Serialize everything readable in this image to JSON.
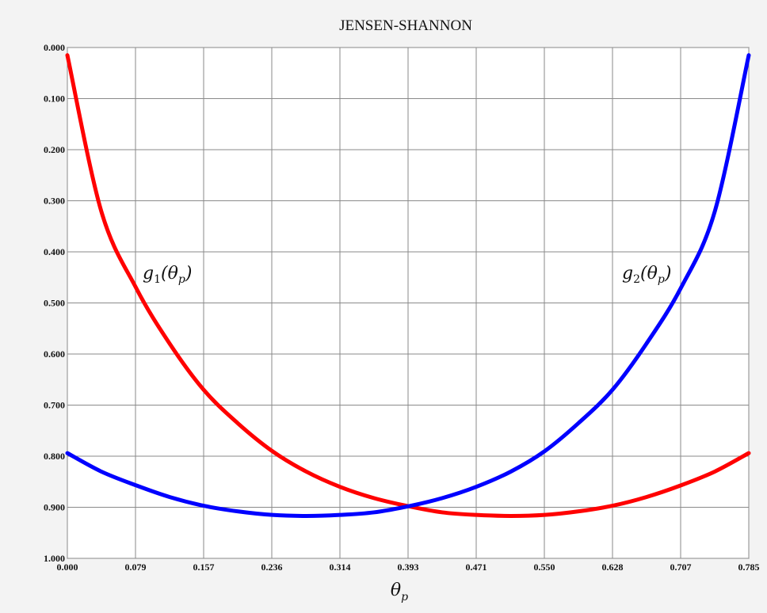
{
  "chart_data": {
    "type": "line",
    "title": "JENSEN-SHANNON",
    "xlabel": "θp",
    "ylabel": "",
    "xlim": [
      0,
      0.785
    ],
    "ylim": [
      0,
      1
    ],
    "y_axis_inverted": true,
    "grid": true,
    "x_ticks": [
      "0.000",
      "0.079",
      "0.157",
      "0.236",
      "0.314",
      "0.393",
      "0.471",
      "0.550",
      "0.628",
      "0.707",
      "0.785"
    ],
    "y_ticks": [
      "0.000",
      "0.100",
      "0.200",
      "0.300",
      "0.400",
      "0.500",
      "0.600",
      "0.700",
      "0.800",
      "0.900",
      "1.000"
    ],
    "series": [
      {
        "name": "g1(θp)",
        "color": "#ff0000",
        "x": [
          0.0,
          0.039,
          0.079,
          0.118,
          0.157,
          0.196,
          0.236,
          0.275,
          0.314,
          0.353,
          0.393,
          0.432,
          0.471,
          0.511,
          0.55,
          0.589,
          0.628,
          0.667,
          0.707,
          0.746,
          0.785
        ],
        "y": [
          0.015,
          0.32,
          0.47,
          0.58,
          0.67,
          0.735,
          0.79,
          0.83,
          0.86,
          0.882,
          0.898,
          0.91,
          0.915,
          0.917,
          0.915,
          0.908,
          0.897,
          0.88,
          0.857,
          0.83,
          0.794
        ]
      },
      {
        "name": "g2(θp)",
        "color": "#0000ff",
        "x": [
          0.0,
          0.039,
          0.079,
          0.118,
          0.157,
          0.196,
          0.236,
          0.275,
          0.314,
          0.353,
          0.393,
          0.432,
          0.471,
          0.511,
          0.55,
          0.589,
          0.628,
          0.667,
          0.707,
          0.746,
          0.785
        ],
        "y": [
          0.794,
          0.83,
          0.857,
          0.88,
          0.897,
          0.908,
          0.915,
          0.917,
          0.915,
          0.91,
          0.898,
          0.882,
          0.86,
          0.83,
          0.79,
          0.735,
          0.67,
          0.58,
          0.47,
          0.32,
          0.015
        ]
      }
    ],
    "annotations": [
      {
        "text": "g1(θp)",
        "series": 0
      },
      {
        "text": "g2(θp)",
        "series": 1
      }
    ]
  }
}
